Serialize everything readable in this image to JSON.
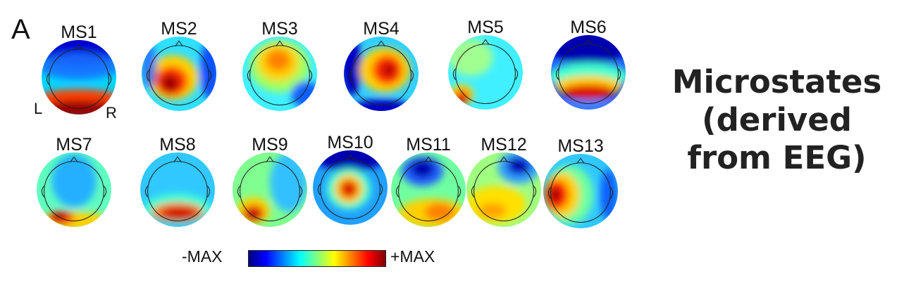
{
  "figure": {
    "panel_letter": "A",
    "maps": [
      {
        "label": "MS1",
        "base": "#00d8ff",
        "blobs": [
          {
            "c": "#0000d0",
            "cx": 50,
            "cy": 10,
            "rx": 55,
            "ry": 25,
            "o": 1
          },
          {
            "c": "#1a6fff",
            "cx": 50,
            "cy": 35,
            "rx": 55,
            "ry": 18,
            "o": 0.9
          },
          {
            "c": "#ff4000",
            "cx": 50,
            "cy": 78,
            "rx": 55,
            "ry": 12,
            "o": 1
          },
          {
            "c": "#9a0000",
            "cx": 50,
            "cy": 93,
            "rx": 50,
            "ry": 12,
            "o": 1
          }
        ]
      },
      {
        "label": "MS2",
        "base": "#2fe0ff",
        "blobs": [
          {
            "c": "#ffd000",
            "cx": 42,
            "cy": 55,
            "rx": 34,
            "ry": 30,
            "o": 1
          },
          {
            "c": "#ff3000",
            "cx": 40,
            "cy": 60,
            "rx": 22,
            "ry": 20,
            "o": 1
          },
          {
            "c": "#a00000",
            "cx": 38,
            "cy": 63,
            "rx": 12,
            "ry": 12,
            "o": 1
          },
          {
            "c": "#1050ff",
            "cx": 92,
            "cy": 45,
            "rx": 14,
            "ry": 40,
            "o": 1
          },
          {
            "c": "#2060ff",
            "cx": 10,
            "cy": 40,
            "rx": 10,
            "ry": 30,
            "o": 0.8
          }
        ]
      },
      {
        "label": "MS3",
        "base": "#40f0ff",
        "blobs": [
          {
            "c": "#a0ff60",
            "cx": 50,
            "cy": 40,
            "rx": 40,
            "ry": 35,
            "o": 1
          },
          {
            "c": "#ffd000",
            "cx": 48,
            "cy": 35,
            "rx": 28,
            "ry": 25,
            "o": 1
          },
          {
            "c": "#ff8000",
            "cx": 48,
            "cy": 32,
            "rx": 16,
            "ry": 14,
            "o": 1
          },
          {
            "c": "#1060ff",
            "cx": 85,
            "cy": 78,
            "rx": 20,
            "ry": 18,
            "o": 1
          }
        ]
      },
      {
        "label": "MS4",
        "base": "#30d0ff",
        "blobs": [
          {
            "c": "#0000c0",
            "cx": 10,
            "cy": 40,
            "rx": 14,
            "ry": 40,
            "o": 1
          },
          {
            "c": "#0000c0",
            "cx": 50,
            "cy": 98,
            "rx": 40,
            "ry": 14,
            "o": 1
          },
          {
            "c": "#ffd000",
            "cx": 55,
            "cy": 45,
            "rx": 34,
            "ry": 30,
            "o": 1
          },
          {
            "c": "#ff3000",
            "cx": 58,
            "cy": 45,
            "rx": 20,
            "ry": 20,
            "o": 1
          },
          {
            "c": "#c00000",
            "cx": 60,
            "cy": 45,
            "rx": 10,
            "ry": 10,
            "o": 1
          }
        ]
      },
      {
        "label": "MS5",
        "base": "#40f0ff",
        "blobs": [
          {
            "c": "#a0ff90",
            "cx": 30,
            "cy": 30,
            "rx": 30,
            "ry": 25,
            "o": 1
          },
          {
            "c": "#ffd000",
            "cx": 18,
            "cy": 80,
            "rx": 16,
            "ry": 14,
            "o": 1
          },
          {
            "c": "#ff2000",
            "cx": 18,
            "cy": 84,
            "rx": 10,
            "ry": 10,
            "o": 1
          },
          {
            "c": "#8a0000",
            "cx": 18,
            "cy": 88,
            "rx": 5,
            "ry": 5,
            "o": 1
          }
        ]
      },
      {
        "label": "MS6",
        "base": "#2060ff",
        "blobs": [
          {
            "c": "#0000b0",
            "cx": 50,
            "cy": 12,
            "rx": 55,
            "ry": 28,
            "o": 1
          },
          {
            "c": "#40ffd0",
            "cx": 50,
            "cy": 55,
            "rx": 55,
            "ry": 18,
            "o": 1
          },
          {
            "c": "#ffd000",
            "cx": 50,
            "cy": 68,
            "rx": 45,
            "ry": 14,
            "o": 1
          },
          {
            "c": "#e01000",
            "cx": 50,
            "cy": 76,
            "rx": 36,
            "ry": 10,
            "o": 1
          },
          {
            "c": "#4080ff",
            "cx": 50,
            "cy": 96,
            "rx": 45,
            "ry": 8,
            "o": 1
          }
        ]
      },
      {
        "label": "MS7",
        "base": "#60ffc0",
        "blobs": [
          {
            "c": "#20b0ff",
            "cx": 50,
            "cy": 38,
            "rx": 30,
            "ry": 36,
            "o": 1
          },
          {
            "c": "#ffd000",
            "cx": 50,
            "cy": 92,
            "rx": 50,
            "ry": 12,
            "o": 1
          },
          {
            "c": "#ff2000",
            "cx": 32,
            "cy": 88,
            "rx": 18,
            "ry": 9,
            "o": 1
          },
          {
            "c": "#a00000",
            "cx": 30,
            "cy": 88,
            "rx": 8,
            "ry": 6,
            "o": 1
          }
        ]
      },
      {
        "label": "MS8",
        "base": "#30c8ff",
        "blobs": [
          {
            "c": "#40ffd0",
            "cx": 50,
            "cy": 75,
            "rx": 45,
            "ry": 20,
            "o": 1
          },
          {
            "c": "#ff8000",
            "cx": 50,
            "cy": 80,
            "rx": 35,
            "ry": 13,
            "o": 1
          },
          {
            "c": "#d01000",
            "cx": 52,
            "cy": 82,
            "rx": 25,
            "ry": 9,
            "o": 1
          }
        ]
      },
      {
        "label": "MS9",
        "base": "#80ff90",
        "blobs": [
          {
            "c": "#30c0ff",
            "cx": 75,
            "cy": 40,
            "rx": 25,
            "ry": 40,
            "o": 1
          },
          {
            "c": "#ffd000",
            "cx": 28,
            "cy": 78,
            "rx": 22,
            "ry": 18,
            "o": 1
          },
          {
            "c": "#e01000",
            "cx": 28,
            "cy": 82,
            "rx": 14,
            "ry": 11,
            "o": 1
          },
          {
            "c": "#9a0000",
            "cx": 28,
            "cy": 84,
            "rx": 6,
            "ry": 5,
            "o": 1
          }
        ]
      },
      {
        "label": "MS10",
        "base": "#20a0ff",
        "blobs": [
          {
            "c": "#0000b0",
            "cx": 50,
            "cy": 6,
            "rx": 50,
            "ry": 22,
            "o": 1
          },
          {
            "c": "#40ffd0",
            "cx": 48,
            "cy": 52,
            "rx": 30,
            "ry": 28,
            "o": 1
          },
          {
            "c": "#ffd000",
            "cx": 48,
            "cy": 52,
            "rx": 20,
            "ry": 20,
            "o": 1
          },
          {
            "c": "#e01000",
            "cx": 48,
            "cy": 52,
            "rx": 12,
            "ry": 12,
            "o": 1
          }
        ]
      },
      {
        "label": "MS11",
        "base": "#70ffa0",
        "blobs": [
          {
            "c": "#ffd000",
            "cx": 55,
            "cy": 82,
            "rx": 45,
            "ry": 20,
            "o": 1
          },
          {
            "c": "#ff8000",
            "cx": 65,
            "cy": 80,
            "rx": 20,
            "ry": 12,
            "o": 1
          },
          {
            "c": "#2060ff",
            "cx": 42,
            "cy": 25,
            "rx": 28,
            "ry": 20,
            "o": 1
          },
          {
            "c": "#0000b0",
            "cx": 42,
            "cy": 22,
            "rx": 16,
            "ry": 12,
            "o": 1
          }
        ]
      },
      {
        "label": "MS12",
        "base": "#a0ff80",
        "blobs": [
          {
            "c": "#ffe000",
            "cx": 40,
            "cy": 70,
            "rx": 40,
            "ry": 25,
            "o": 1
          },
          {
            "c": "#ffa000",
            "cx": 35,
            "cy": 78,
            "rx": 18,
            "ry": 10,
            "o": 1
          },
          {
            "c": "#30a0ff",
            "cx": 70,
            "cy": 20,
            "rx": 28,
            "ry": 22,
            "o": 1
          },
          {
            "c": "#0000c0",
            "cx": 70,
            "cy": 18,
            "rx": 16,
            "ry": 12,
            "o": 1
          }
        ]
      },
      {
        "label": "MS13",
        "base": "#30c8ff",
        "blobs": [
          {
            "c": "#70ffa0",
            "cx": 35,
            "cy": 55,
            "rx": 32,
            "ry": 40,
            "o": 1
          },
          {
            "c": "#ffd000",
            "cx": 25,
            "cy": 55,
            "rx": 24,
            "ry": 30,
            "o": 1
          },
          {
            "c": "#ff2000",
            "cx": 18,
            "cy": 55,
            "rx": 16,
            "ry": 20,
            "o": 1
          },
          {
            "c": "#a00000",
            "cx": 15,
            "cy": 55,
            "rx": 8,
            "ry": 10,
            "o": 1
          },
          {
            "c": "#1060ff",
            "cx": 88,
            "cy": 55,
            "rx": 12,
            "ry": 35,
            "o": 1
          }
        ]
      }
    ],
    "side_left": "L",
    "side_right": "R",
    "colorbar": {
      "min_label": "-MAX",
      "max_label": "+MAX"
    }
  },
  "title_lines": [
    "Microstates",
    "(derived",
    "from EEG)"
  ]
}
